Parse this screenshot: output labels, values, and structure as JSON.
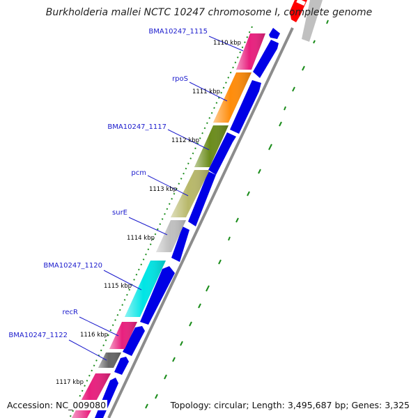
{
  "title": "Burkholderia mallei NCTC 10247 chromosome I, complete genome",
  "accession_text": "Accession: NC_009080",
  "summary_text": "Topology: circular; Length: 3,495,687 bp; Genes: 3,325",
  "genes": [
    {
      "label": "BMA10247_1115",
      "color": "#e8207e"
    },
    {
      "label": "rpoS",
      "color": "#ff8c0a"
    },
    {
      "label": "BMA10247_1117",
      "color": "#6b8c1c"
    },
    {
      "label": "pcm",
      "color": "#b8b86a"
    },
    {
      "label": "surE",
      "color": "#c0c0c0"
    },
    {
      "label": "BMA10247_1120",
      "color": "#00e5e5"
    },
    {
      "label": "recR",
      "color": "#e8207e"
    },
    {
      "label": "BMA10247_1122",
      "color": "#666666"
    },
    {
      "label": "",
      "color": "#e8207e"
    }
  ],
  "ticks": [
    "1110 kbp",
    "1111 kbp",
    "1112 kbp",
    "1113 kbp",
    "1114 kbp",
    "1115 kbp",
    "1116 kbp",
    "1117 kbp"
  ],
  "colors": {
    "cds_strand": "#0000e6",
    "backbone": "#8c8c8c",
    "gc_skew": "#1a8c1a",
    "label": "#1a1acc",
    "highlight": "#ff0000"
  }
}
